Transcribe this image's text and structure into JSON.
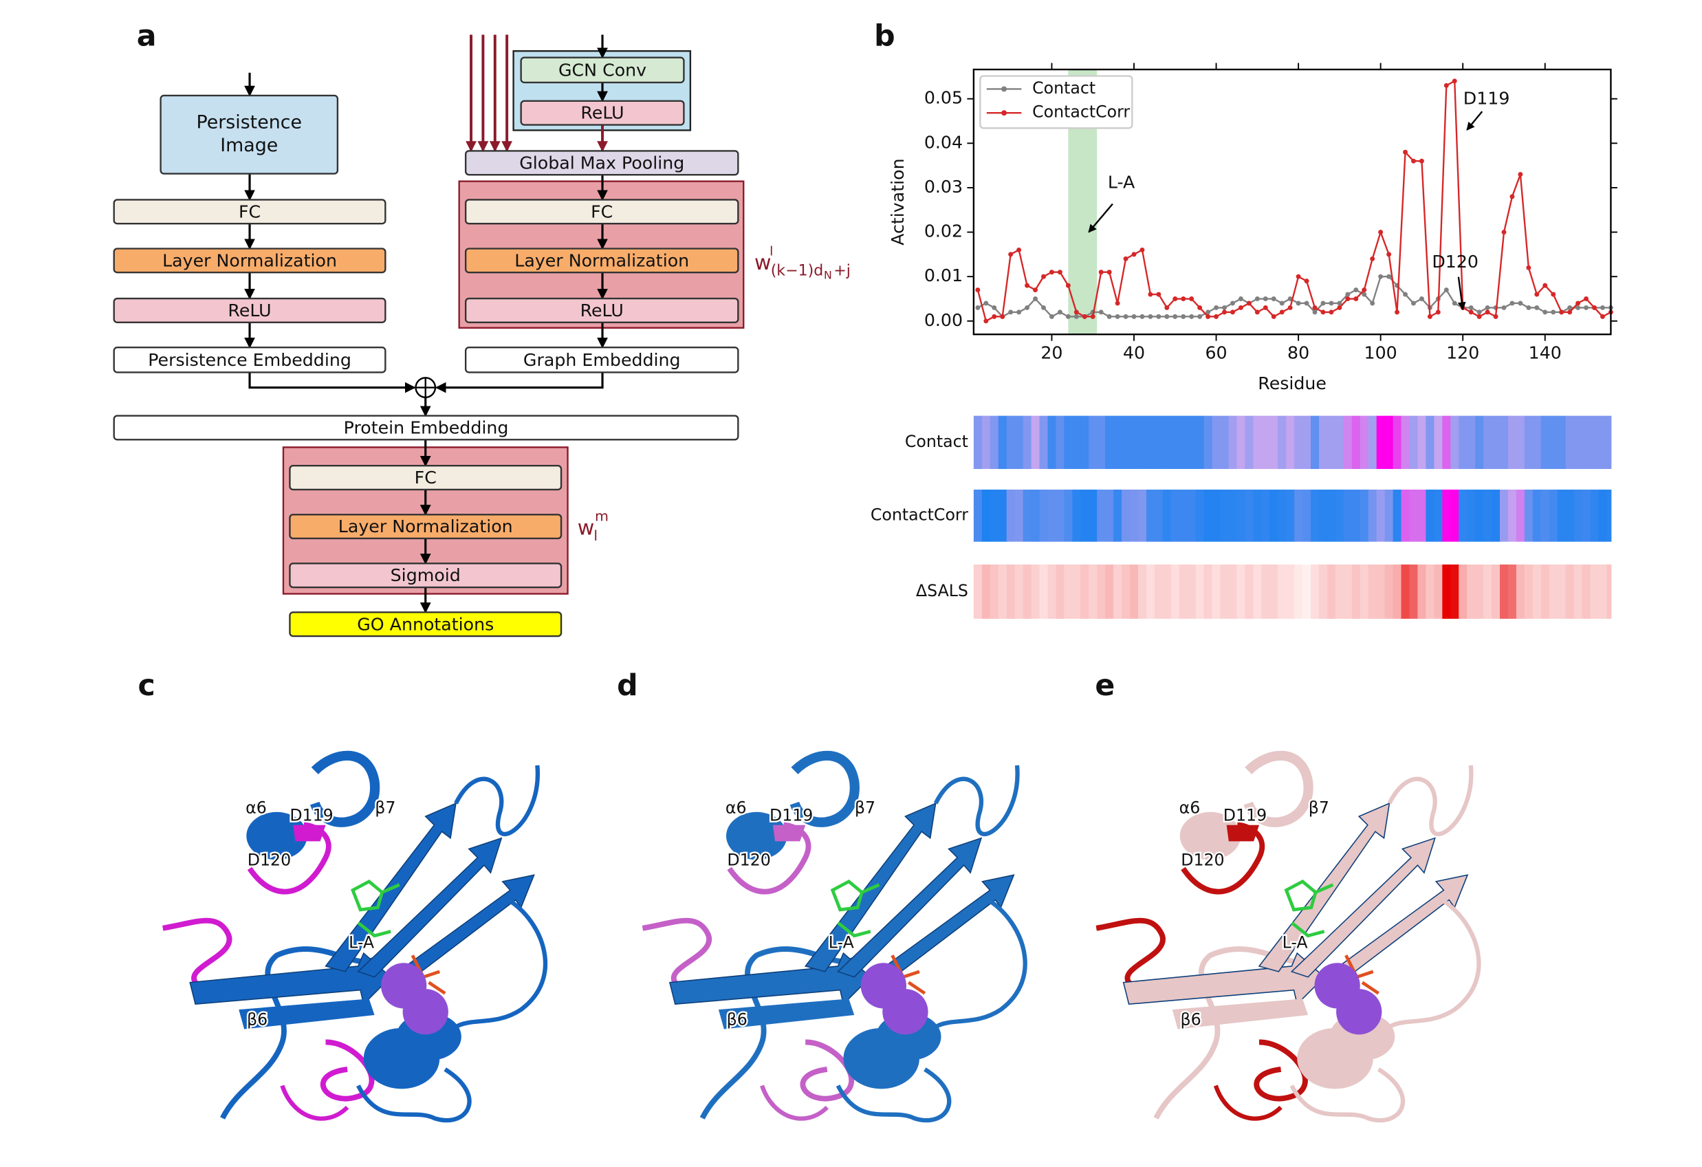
{
  "panel_labels": [
    "a",
    "b",
    "c",
    "d",
    "e"
  ],
  "diagram": {
    "nodes": [
      [
        "Persistence",
        "Image"
      ],
      "FC",
      "Layer Normalization",
      "ReLU",
      "Persistence Embedding",
      "GCN Conv",
      "ReLU",
      "Global Max Pooling",
      "FC",
      "Layer Normalization",
      "ReLU",
      "Graph Embedding",
      "Protein Embedding",
      "FC",
      "Layer Normalization",
      "Sigmoid",
      "GO Annotations"
    ],
    "weights": [
      {
        "base": "w",
        "sup": "l",
        "sub": "(k−1)d",
        "subsub": "N",
        "tail": "+j"
      },
      {
        "base": "w",
        "sup": "m",
        "sub": "l"
      }
    ]
  },
  "chart_data": {
    "type": "line",
    "xlabel": "Residue",
    "ylabel": "Activation",
    "x": [
      2,
      4,
      6,
      8,
      10,
      12,
      14,
      16,
      18,
      20,
      22,
      24,
      26,
      28,
      30,
      32,
      34,
      36,
      38,
      40,
      42,
      44,
      46,
      48,
      50,
      52,
      54,
      56,
      58,
      60,
      62,
      64,
      66,
      68,
      70,
      72,
      74,
      76,
      78,
      80,
      82,
      84,
      86,
      88,
      90,
      92,
      94,
      96,
      98,
      100,
      102,
      104,
      106,
      108,
      110,
      112,
      114,
      116,
      118,
      120,
      122,
      124,
      126,
      128,
      130,
      132,
      134,
      136,
      138,
      140,
      142,
      144,
      146,
      148,
      150,
      152,
      154,
      156
    ],
    "series": [
      {
        "name": "Contact",
        "color": "#808080",
        "values": [
          0.003,
          0.004,
          0.003,
          0.001,
          0.002,
          0.002,
          0.003,
          0.005,
          0.003,
          0.001,
          0.002,
          0.001,
          0.001,
          0.001,
          0.002,
          0.002,
          0.001,
          0.001,
          0.001,
          0.001,
          0.001,
          0.001,
          0.001,
          0.001,
          0.001,
          0.001,
          0.001,
          0.001,
          0.002,
          0.003,
          0.003,
          0.004,
          0.005,
          0.004,
          0.005,
          0.005,
          0.005,
          0.004,
          0.005,
          0.004,
          0.004,
          0.002,
          0.004,
          0.004,
          0.004,
          0.006,
          0.007,
          0.006,
          0.004,
          0.01,
          0.01,
          0.008,
          0.006,
          0.004,
          0.005,
          0.003,
          0.005,
          0.007,
          0.004,
          0.003,
          0.003,
          0.002,
          0.003,
          0.003,
          0.003,
          0.004,
          0.004,
          0.003,
          0.003,
          0.002,
          0.002,
          0.002,
          0.003,
          0.003,
          0.003,
          0.003,
          0.003,
          0.003
        ]
      },
      {
        "name": "ContactCorr",
        "color": "#d62728",
        "values": [
          0.007,
          0.0,
          0.001,
          0.001,
          0.015,
          0.016,
          0.008,
          0.007,
          0.01,
          0.011,
          0.011,
          0.008,
          0.002,
          0.001,
          0.001,
          0.011,
          0.011,
          0.004,
          0.014,
          0.015,
          0.016,
          0.006,
          0.006,
          0.003,
          0.005,
          0.005,
          0.005,
          0.003,
          0.001,
          0.001,
          0.002,
          0.002,
          0.003,
          0.004,
          0.002,
          0.003,
          0.001,
          0.002,
          0.003,
          0.01,
          0.009,
          0.003,
          0.002,
          0.002,
          0.003,
          0.005,
          0.005,
          0.007,
          0.014,
          0.02,
          0.015,
          0.002,
          0.038,
          0.036,
          0.036,
          0.001,
          0.002,
          0.053,
          0.054,
          0.003,
          0.002,
          0.001,
          0.002,
          0.001,
          0.02,
          0.028,
          0.033,
          0.012,
          0.006,
          0.008,
          0.006,
          0.002,
          0.002,
          0.004,
          0.005,
          0.003,
          0.001,
          0.002
        ]
      }
    ],
    "xlim": [
      1,
      156
    ],
    "ylim": [
      -0.003,
      0.0566
    ],
    "xticks": [
      20,
      40,
      60,
      80,
      100,
      120,
      140
    ],
    "yticks": [
      {
        "value": 0,
        "label": "0.00"
      },
      {
        "value": 0.01,
        "label": "0.01"
      },
      {
        "value": 0.02,
        "label": "0.02"
      },
      {
        "value": 0.03,
        "label": "0.03"
      },
      {
        "value": 0.04,
        "label": "0.04"
      },
      {
        "value": 0.05,
        "label": "0.05"
      }
    ],
    "legend": "upper left",
    "highlight_x": [
      24,
      31
    ],
    "highlight_color": "#b8e0b8",
    "annotations": [
      {
        "text": "L-A",
        "x": 29,
        "y": 0.02
      },
      {
        "text": "D119",
        "x": 121,
        "y": 0.043
      },
      {
        "text": "D120",
        "x": 120,
        "y": 0.0026
      }
    ],
    "heatmap": {
      "rows": [
        "Contact",
        "ContactCorr",
        "ΔSALS"
      ],
      "sals_values": [
        0.15,
        0.25,
        0.2,
        0.15,
        0.2,
        0.15,
        0.2,
        0.15,
        0.1,
        0.15,
        0.2,
        0.15,
        0.15,
        0.2,
        0.15,
        0.2,
        0.25,
        0.15,
        0.2,
        0.25,
        0.15,
        0.1,
        0.15,
        0.15,
        0.1,
        0.15,
        0.15,
        0.1,
        0.15,
        0.1,
        0.15,
        0.15,
        0.1,
        0.15,
        0.1,
        0.15,
        0.15,
        0.1,
        0.1,
        0.05,
        0.02,
        0.1,
        0.15,
        0.2,
        0.15,
        0.15,
        0.2,
        0.15,
        0.2,
        0.2,
        0.25,
        0.3,
        0.7,
        0.6,
        0.3,
        0.2,
        0.25,
        1.0,
        0.95,
        0.3,
        0.2,
        0.2,
        0.15,
        0.2,
        0.6,
        0.55,
        0.25,
        0.2,
        0.15,
        0.2,
        0.15,
        0.15,
        0.2,
        0.15,
        0.2,
        0.15,
        0.15,
        0.2
      ]
    }
  },
  "structure_labels": [
    "α6",
    "D119",
    "β7",
    "D120",
    "L-A",
    "β6"
  ]
}
